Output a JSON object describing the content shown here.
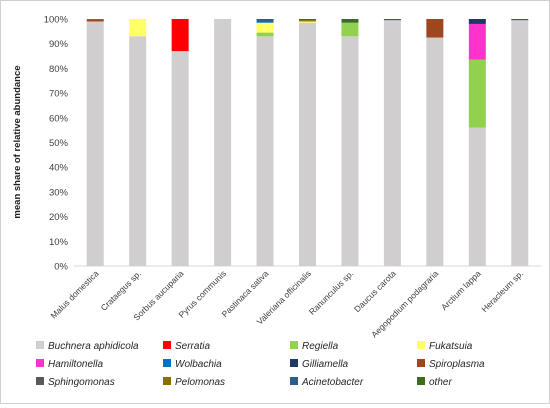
{
  "chart_data": {
    "type": "bar",
    "stacked": true,
    "title": "",
    "xlabel": "",
    "ylabel": "mean share of relative abundance",
    "ylim": [
      0,
      100
    ],
    "yticks": [
      "0%",
      "10%",
      "20%",
      "30%",
      "40%",
      "50%",
      "60%",
      "70%",
      "80%",
      "90%",
      "100%"
    ],
    "grid": false,
    "legend_position": "bottom",
    "categories": [
      "Malus domestica",
      "Crataegus sp.",
      "Sorbus aucuparia",
      "Pyrus communis",
      "Pastinaca sativa",
      "Valeriana officinalis",
      "Ranunculus sp.",
      "Daucus carota",
      "Aegopodium podagraria",
      "Arctium lappa",
      "Heracleum sp."
    ],
    "series": [
      {
        "name": "Buchnera aphidicola",
        "color": "#d0cece",
        "values": [
          99,
          93,
          87,
          100,
          93,
          98.5,
          93,
          99.5,
          92.5,
          56,
          99.5
        ]
      },
      {
        "name": "Serratia",
        "color": "#ff0000",
        "values": [
          0,
          0,
          13,
          0,
          0,
          0,
          0,
          0,
          0,
          0,
          0
        ]
      },
      {
        "name": "Regiella",
        "color": "#92d050",
        "values": [
          0,
          0,
          0,
          0,
          1.5,
          0,
          5.5,
          0,
          0,
          27.5,
          0
        ]
      },
      {
        "name": "Fukatsuia",
        "color": "#ffff66",
        "values": [
          0,
          7,
          0,
          0,
          4,
          0.5,
          0,
          0,
          0,
          0,
          0
        ]
      },
      {
        "name": "Hamiltonella",
        "color": "#ff33cc",
        "values": [
          0,
          0,
          0,
          0,
          0,
          0,
          0,
          0,
          0,
          14.5,
          0
        ]
      },
      {
        "name": "Wolbachia",
        "color": "#0070c0",
        "values": [
          0,
          0,
          0,
          0,
          0.5,
          0,
          0,
          0,
          0,
          0,
          0
        ]
      },
      {
        "name": "Gilliamella",
        "color": "#1f3864",
        "values": [
          0,
          0,
          0,
          0,
          0,
          0,
          0,
          0,
          0,
          2,
          0
        ]
      },
      {
        "name": "Spiroplasma",
        "color": "#a0461e",
        "values": [
          0.7,
          0,
          0,
          0,
          0,
          0,
          0,
          0,
          7.5,
          0,
          0
        ]
      },
      {
        "name": "Sphingomonas",
        "color": "#595959",
        "values": [
          0,
          0,
          0,
          0,
          0,
          0,
          0,
          0,
          0,
          0,
          0
        ]
      },
      {
        "name": "Pelomonas",
        "color": "#8c6d00",
        "values": [
          0,
          0,
          0,
          0,
          0,
          0.5,
          0,
          0,
          0,
          0,
          0
        ]
      },
      {
        "name": "Acinetobacter",
        "color": "#2e5d8a",
        "values": [
          0,
          0,
          0,
          0,
          1,
          0,
          0,
          0,
          0,
          0,
          0
        ]
      },
      {
        "name": "other",
        "color": "#3e6b22",
        "values": [
          0.3,
          0,
          0,
          0,
          0,
          0.5,
          1.5,
          0.5,
          0,
          0,
          0.5
        ]
      }
    ]
  }
}
